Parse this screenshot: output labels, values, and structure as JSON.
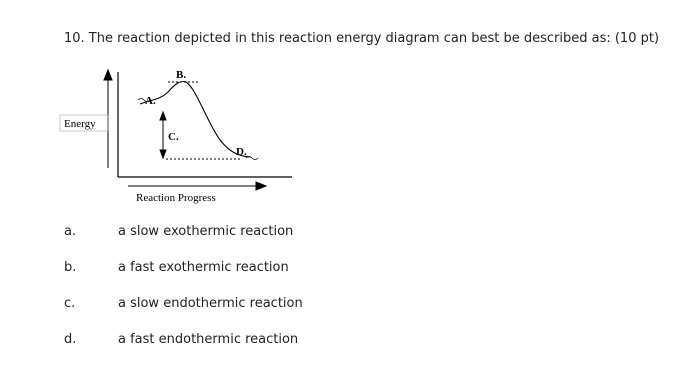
{
  "question": "10. The reaction depicted in this reaction energy diagram can best be described as: (10 pt)",
  "diagram": {
    "y_axis_label": "Energy",
    "x_axis_label": "Reaction Progress",
    "labels": [
      "A.",
      "B.",
      "C.",
      "D."
    ]
  },
  "options": [
    {
      "letter": "a.",
      "text": "a slow exothermic reaction"
    },
    {
      "letter": "b.",
      "text": "a fast exothermic reaction"
    },
    {
      "letter": "c.",
      "text": "a slow endothermic reaction"
    },
    {
      "letter": "d.",
      "text": "a fast endothermic reaction"
    }
  ]
}
